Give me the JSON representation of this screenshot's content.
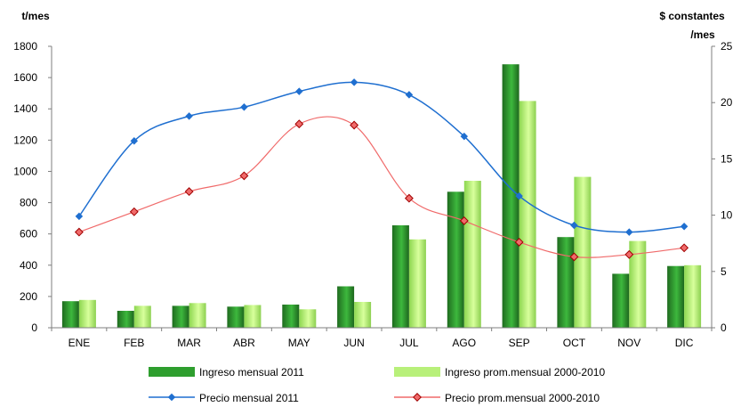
{
  "chart_data": {
    "type": "bar",
    "categories": [
      "ENE",
      "FEB",
      "MAR",
      "ABR",
      "MAY",
      "JUN",
      "JUL",
      "AGO",
      "SEP",
      "OCT",
      "NOV",
      "DIC"
    ],
    "ylabel_left": "t/mes",
    "ylabel_right": [
      "$ constantes",
      "/mes"
    ],
    "ylim_left": [
      0,
      1800
    ],
    "yticks_left": [
      "0",
      "200",
      "400",
      "600",
      "800",
      "1000",
      "1200",
      "1400",
      "1600",
      "1800"
    ],
    "ylim_right": [
      0,
      25
    ],
    "yticks_right": [
      "0",
      "5",
      "10",
      "15",
      "20",
      "25"
    ],
    "grid": false,
    "legend_position": "bottom",
    "bar_series": [
      {
        "name": "Ingreso mensual 2011",
        "axis": "left",
        "color": "#2e9e2e",
        "values": [
          170,
          108,
          140,
          135,
          148,
          265,
          655,
          870,
          1685,
          580,
          345,
          395
        ]
      },
      {
        "name": "Ingreso prom.mensual 2000-2010",
        "axis": "left",
        "color": "#b8f07a",
        "values": [
          178,
          140,
          158,
          145,
          118,
          165,
          565,
          940,
          1450,
          965,
          555,
          400
        ]
      }
    ],
    "line_series": [
      {
        "name": "Precio mensual 2011",
        "axis": "right",
        "color": "#1f6fd0",
        "values": [
          9.9,
          16.6,
          18.8,
          19.6,
          21.0,
          21.8,
          20.7,
          17.0,
          11.7,
          9.1,
          8.5,
          9.0
        ]
      },
      {
        "name": "Precio prom.mensual 2000-2010",
        "axis": "right",
        "color": "#f06a6a",
        "values": [
          8.5,
          10.3,
          12.1,
          13.5,
          18.1,
          18.0,
          11.5,
          9.5,
          7.6,
          6.3,
          6.5,
          7.1
        ]
      }
    ]
  }
}
